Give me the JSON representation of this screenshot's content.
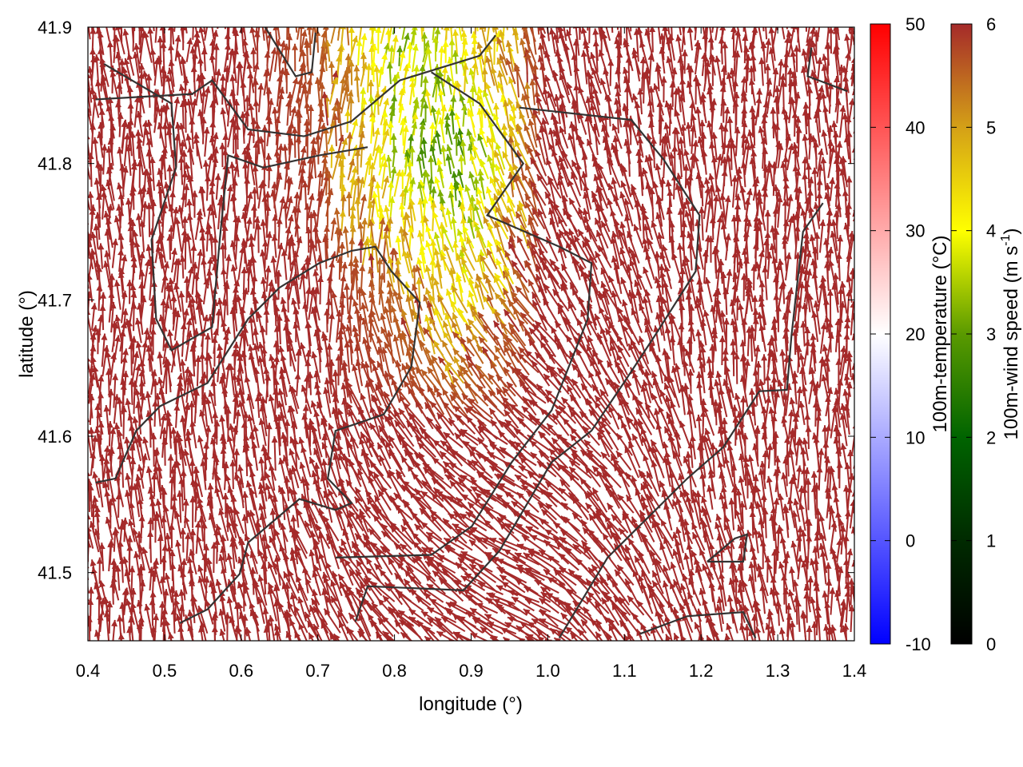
{
  "chart_data": {
    "type": "vector-field",
    "xlabel": "longitude (°)",
    "ylabel": "latitude (°)",
    "xlim": [
      0.4,
      1.4
    ],
    "ylim": [
      41.45,
      41.9
    ],
    "xticks": [
      "0.4",
      "0.5",
      "0.6",
      "0.7",
      "0.8",
      "0.9",
      "1.0",
      "1.1",
      "1.2",
      "1.3",
      "1.4"
    ],
    "xtick_values": [
      0.4,
      0.5,
      0.6,
      0.7,
      0.8,
      0.9,
      1.0,
      1.1,
      1.2,
      1.3,
      1.4
    ],
    "yticks": [
      "41.5",
      "41.6",
      "41.7",
      "41.8",
      "41.9"
    ],
    "ytick_values": [
      41.5,
      41.6,
      41.7,
      41.8,
      41.9
    ],
    "colorbars": [
      {
        "label": "100m-temperature (°C)",
        "range": [
          -10,
          50
        ],
        "ticks": [
          "-10",
          "0",
          "10",
          "20",
          "30",
          "40",
          "50"
        ],
        "tick_values": [
          -10,
          0,
          10,
          20,
          30,
          40,
          50
        ],
        "colors": [
          "#0000ff",
          "#ffffff",
          "#ff0000"
        ]
      },
      {
        "label": "100m-wind speed (m s",
        "label_sup": "-1",
        "label_end": ")",
        "range": [
          0,
          6
        ],
        "ticks": [
          "0",
          "1",
          "2",
          "3",
          "4",
          "5",
          "6"
        ],
        "tick_values": [
          0,
          1,
          2,
          3,
          4,
          5,
          6
        ],
        "colors": [
          "#000000",
          "#004c00",
          "#006400",
          "#5a9a00",
          "#ffff00",
          "#d4a017",
          "#a52a2a"
        ]
      }
    ],
    "field": {
      "grid_lon": [
        0.4,
        0.5,
        0.6,
        0.7,
        0.8,
        0.9,
        1.0,
        1.1,
        1.2,
        1.3,
        1.4
      ],
      "grid_lat": [
        41.9,
        41.8,
        41.7,
        41.6,
        41.5,
        41.45
      ],
      "direction_deg": [
        [
          95,
          92,
          90,
          88,
          80,
          90,
          100,
          95,
          92,
          90,
          92
        ],
        [
          95,
          92,
          90,
          85,
          85,
          100,
          110,
          100,
          92,
          90,
          92
        ],
        [
          92,
          90,
          90,
          90,
          95,
          110,
          120,
          110,
          95,
          90,
          92
        ],
        [
          92,
          92,
          95,
          100,
          120,
          135,
          140,
          120,
          100,
          92,
          90
        ],
        [
          95,
          95,
          100,
          110,
          130,
          145,
          150,
          125,
          105,
          95,
          92
        ],
        [
          95,
          95,
          100,
          110,
          130,
          145,
          150,
          125,
          105,
          95,
          92
        ]
      ],
      "speed": [
        [
          6,
          6,
          6,
          5.6,
          3.8,
          4.5,
          6,
          6,
          6,
          6,
          6
        ],
        [
          6,
          6,
          6,
          5.8,
          3.5,
          3.2,
          6,
          6,
          6,
          6,
          6
        ],
        [
          6,
          6,
          6,
          6,
          5.5,
          4.2,
          6,
          6,
          6,
          6,
          6
        ],
        [
          6,
          6,
          6,
          6,
          6,
          6,
          6,
          6,
          6,
          6,
          6
        ],
        [
          6,
          6,
          6,
          6,
          6,
          6,
          6,
          6,
          6,
          6,
          6
        ],
        [
          6,
          6,
          6,
          6,
          6,
          6,
          6,
          6,
          6,
          6,
          6
        ]
      ]
    },
    "contours": [
      [
        [
          0.421,
          41.873
        ],
        [
          0.509,
          41.844
        ],
        [
          0.515,
          41.797
        ],
        [
          0.483,
          41.744
        ],
        [
          0.489,
          41.686
        ],
        [
          0.509,
          41.663
        ],
        [
          0.562,
          41.68
        ],
        [
          0.572,
          41.744
        ],
        [
          0.583,
          41.806
        ],
        [
          0.629,
          41.797
        ],
        [
          0.702,
          41.806
        ],
        [
          0.765,
          41.812
        ]
      ],
      [
        [
          0.848,
          41.867
        ],
        [
          0.911,
          41.844
        ],
        [
          0.968,
          41.8
        ],
        [
          0.921,
          41.762
        ],
        [
          1.015,
          41.739
        ],
        [
          1.057,
          41.727
        ],
        [
          1.052,
          41.686
        ],
        [
          1.005,
          41.619
        ],
        [
          0.953,
          41.581
        ],
        [
          0.901,
          41.534
        ],
        [
          0.848,
          41.513
        ],
        [
          0.723,
          41.511
        ]
      ],
      [
        [
          0.963,
          41.841
        ],
        [
          1.109,
          41.832
        ],
        [
          1.151,
          41.803
        ],
        [
          1.198,
          41.762
        ],
        [
          1.193,
          41.721
        ],
        [
          1.14,
          41.674
        ],
        [
          1.099,
          41.639
        ],
        [
          1.057,
          41.604
        ],
        [
          1.005,
          41.581
        ],
        [
          0.937,
          41.516
        ],
        [
          0.89,
          41.487
        ],
        [
          0.765,
          41.49
        ],
        [
          0.749,
          41.464
        ]
      ],
      [
        [
          1.359,
          41.771
        ],
        [
          1.333,
          41.75
        ],
        [
          1.318,
          41.674
        ],
        [
          1.312,
          41.634
        ],
        [
          1.276,
          41.633
        ],
        [
          1.229,
          41.592
        ],
        [
          1.182,
          41.569
        ],
        [
          1.078,
          41.511
        ],
        [
          1.015,
          41.452
        ]
      ],
      [
        [
          0.41,
          41.566
        ],
        [
          0.436,
          41.569
        ],
        [
          0.463,
          41.604
        ],
        [
          0.494,
          41.622
        ],
        [
          0.556,
          41.639
        ],
        [
          0.609,
          41.686
        ],
        [
          0.65,
          41.709
        ],
        [
          0.702,
          41.727
        ],
        [
          0.744,
          41.736
        ],
        [
          0.775,
          41.739
        ],
        [
          0.796,
          41.721
        ],
        [
          0.833,
          41.698
        ],
        [
          0.822,
          41.651
        ],
        [
          0.786,
          41.616
        ],
        [
          0.723,
          41.604
        ],
        [
          0.713,
          41.569
        ],
        [
          0.744,
          41.551
        ],
        [
          0.723,
          41.546
        ],
        [
          0.676,
          41.554
        ],
        [
          0.609,
          41.522
        ],
        [
          0.598,
          41.499
        ],
        [
          0.556,
          41.473
        ],
        [
          0.52,
          41.463
        ]
      ],
      [
        [
          0.629,
          41.902
        ],
        [
          0.671,
          41.864
        ],
        [
          0.692,
          41.867
        ],
        [
          0.697,
          41.896
        ]
      ],
      [
        [
          0.41,
          41.847
        ],
        [
          0.536,
          41.851
        ],
        [
          0.562,
          41.861
        ],
        [
          0.609,
          41.825
        ],
        [
          0.682,
          41.82
        ],
        [
          0.744,
          41.831
        ],
        [
          0.807,
          41.861
        ],
        [
          0.859,
          41.87
        ],
        [
          0.911,
          41.879
        ],
        [
          0.932,
          41.894
        ]
      ],
      [
        [
          1.344,
          41.885
        ],
        [
          1.339,
          41.864
        ],
        [
          1.391,
          41.853
        ]
      ],
      [
        [
          1.208,
          41.508
        ],
        [
          1.255,
          41.508
        ],
        [
          1.26,
          41.528
        ],
        [
          1.244,
          41.525
        ],
        [
          1.208,
          41.508
        ]
      ],
      [
        [
          1.12,
          41.455
        ],
        [
          1.182,
          41.468
        ],
        [
          1.255,
          41.471
        ],
        [
          1.271,
          41.452
        ]
      ]
    ]
  }
}
